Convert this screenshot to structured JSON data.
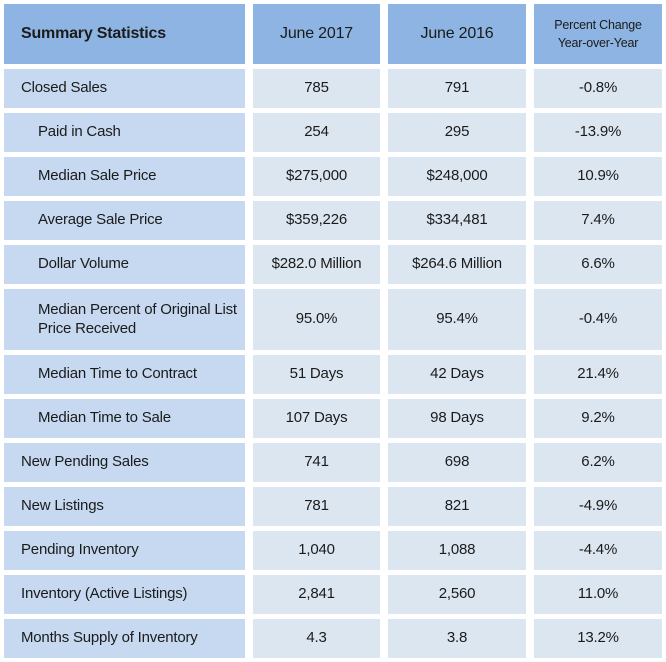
{
  "chart_data": {
    "type": "table",
    "title": "Summary Statistics",
    "columns": [
      "Summary Statistics",
      "June 2017",
      "June 2016",
      "Percent Change Year-over-Year"
    ],
    "header": {
      "col1": "Summary Statistics",
      "col2": "June 2017",
      "col3": "June 2016",
      "col4_line1": "Percent Change",
      "col4_line2": "Year-over-Year"
    },
    "rows": [
      {
        "label": "Closed Sales",
        "indent": false,
        "june2017": "785",
        "june2016": "791",
        "percent_change": "-0.8%"
      },
      {
        "label": "Paid in Cash",
        "indent": true,
        "june2017": "254",
        "june2016": "295",
        "percent_change": "-13.9%"
      },
      {
        "label": "Median Sale Price",
        "indent": true,
        "june2017": "$275,000",
        "june2016": "$248,000",
        "percent_change": "10.9%"
      },
      {
        "label": "Average Sale Price",
        "indent": true,
        "june2017": "$359,226",
        "june2016": "$334,481",
        "percent_change": "7.4%"
      },
      {
        "label": "Dollar Volume",
        "indent": true,
        "june2017": "$282.0 Million",
        "june2016": "$264.6 Million",
        "percent_change": "6.6%"
      },
      {
        "label": "Median Percent of Original List Price Received",
        "indent": true,
        "june2017": "95.0%",
        "june2016": "95.4%",
        "percent_change": "-0.4%"
      },
      {
        "label": "Median Time to Contract",
        "indent": true,
        "june2017": "51 Days",
        "june2016": "42 Days",
        "percent_change": "21.4%"
      },
      {
        "label": "Median Time to Sale",
        "indent": true,
        "june2017": "107 Days",
        "june2016": "98 Days",
        "percent_change": "9.2%"
      },
      {
        "label": "New Pending Sales",
        "indent": false,
        "june2017": "741",
        "june2016": "698",
        "percent_change": "6.2%"
      },
      {
        "label": "New Listings",
        "indent": false,
        "june2017": "781",
        "june2016": "821",
        "percent_change": "-4.9%"
      },
      {
        "label": "Pending Inventory",
        "indent": false,
        "june2017": "1,040",
        "june2016": "1,088",
        "percent_change": "-4.4%"
      },
      {
        "label": "Inventory (Active Listings)",
        "indent": false,
        "june2017": "2,841",
        "june2016": "2,560",
        "percent_change": "11.0%"
      },
      {
        "label": "Months Supply of Inventory",
        "indent": false,
        "june2017": "4.3",
        "june2016": "3.8",
        "percent_change": "13.2%"
      }
    ]
  },
  "colors": {
    "header_bg": "#8db4e2",
    "label_cell_bg": "#c6d9f0",
    "value_cell_bg": "#dce6f1",
    "text": "#1b1b1b",
    "page_bg": "#ffffff"
  }
}
